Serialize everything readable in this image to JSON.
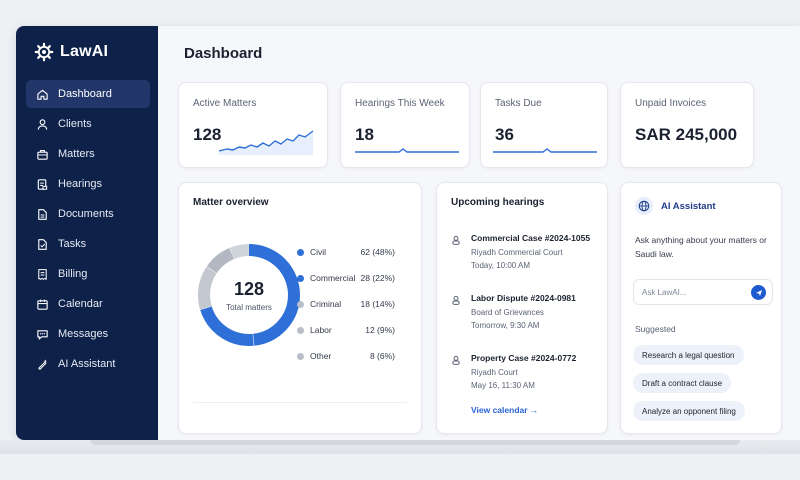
{
  "app": {
    "name": "LawAI"
  },
  "sidebar": {
    "items": [
      {
        "label": "Dashboard",
        "icon": "home-icon",
        "active": true
      },
      {
        "label": "Clients",
        "icon": "user-icon"
      },
      {
        "label": "Matters",
        "icon": "briefcase-icon"
      },
      {
        "label": "Hearings",
        "icon": "gavel-icon"
      },
      {
        "label": "Documents",
        "icon": "document-icon"
      },
      {
        "label": "Tasks",
        "icon": "checklist-icon"
      },
      {
        "label": "Billing",
        "icon": "receipt-icon"
      },
      {
        "label": "Calendar",
        "icon": "calendar-icon"
      },
      {
        "label": "Messages",
        "icon": "chat-icon"
      },
      {
        "label": "AI Assistant",
        "icon": "sparkle-icon"
      }
    ]
  },
  "page": {
    "title": "Dashboard"
  },
  "stats": [
    {
      "label": "Active Matters",
      "value": "128"
    },
    {
      "label": "Hearings This Week",
      "value": "18"
    },
    {
      "label": "Tasks Due",
      "value": "36"
    },
    {
      "label": "Unpaid Invoices",
      "value": "SAR 245,000"
    }
  ],
  "overview": {
    "title": "Matter overview",
    "total": "128",
    "total_label": "Total matters",
    "legend": [
      {
        "name": "Civil",
        "value": "62 (48%)",
        "count": 62,
        "color": "#2f6fd8"
      },
      {
        "name": "Commercial",
        "value": "28 (22%)",
        "count": 28,
        "color": "#2f6fd8"
      },
      {
        "name": "Criminal",
        "value": "18 (14%)",
        "count": 18,
        "color": "#b9bec8"
      },
      {
        "name": "Labor",
        "value": "12 (9%)",
        "count": 12,
        "color": "#b9bec8"
      },
      {
        "name": "Other",
        "value": "8 (6%)",
        "count": 8,
        "color": "#b9bec8"
      }
    ]
  },
  "hearings": {
    "title": "Upcoming hearings",
    "items": [
      {
        "title": "Commercial Case #2024-1055",
        "court": "Riyadh Commercial Court",
        "time": "Today, 10:00 AM"
      },
      {
        "title": "Labor Dispute #2024-0981",
        "court": "Board of Grievances",
        "time": "Tomorrow, 9:30 AM"
      },
      {
        "title": "Property Case #2024-0772",
        "court": "Riyadh Court",
        "time": "May 16, 11:30 AM"
      }
    ],
    "view_link": "View calendar →"
  },
  "assistant": {
    "title": "AI Assistant",
    "description": "Ask anything about your matters or Saudi law.",
    "input_placeholder": "Ask LawAI...",
    "suggested_label": "Suggested",
    "suggestions": [
      "Research a legal question",
      "Draft a contract clause",
      "Analyze an opponent filing"
    ]
  },
  "colors": {
    "sidebar": "#0e2148",
    "accent": "#2f6fd8",
    "muted": "#b9bec8"
  }
}
